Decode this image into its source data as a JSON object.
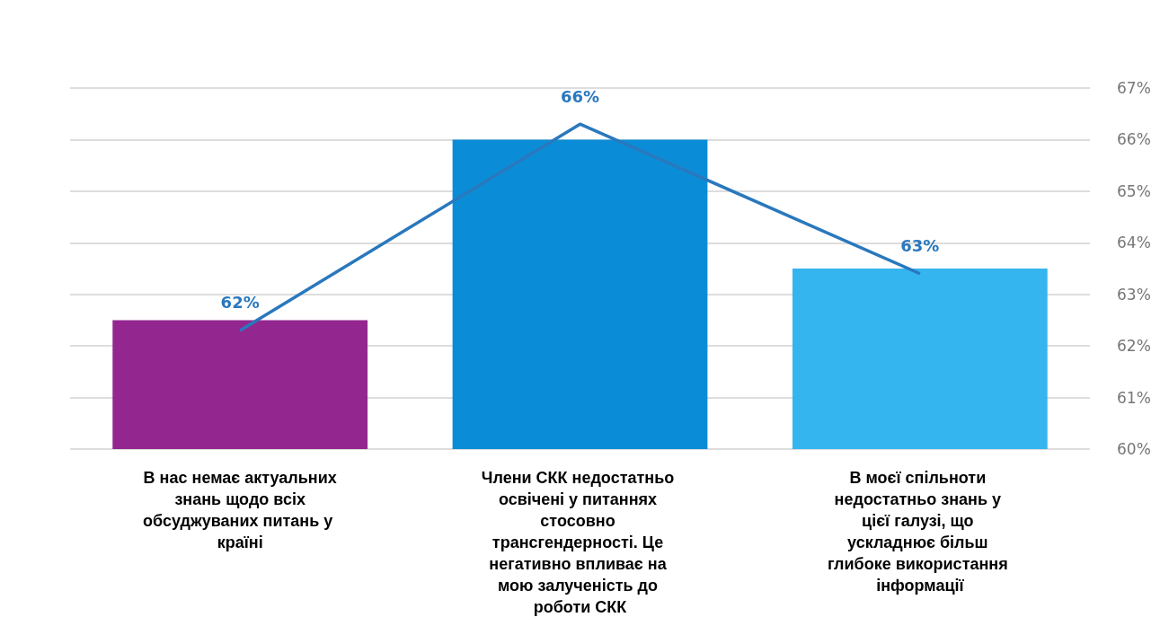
{
  "chart_data": {
    "type": "bar",
    "categories": [
      "В нас немає актуальних знань щодо всіх обсуджуваних питань у країні",
      "Члени СКК недостатньо освічені у питаннях стосовно трансгендерності. Це негативно впливає на мою залученість до роботи СКК",
      "В моєї спільноти недостатньо знань у цієї галузі, що ускладнює більш глибоке використання інформації"
    ],
    "series": [
      {
        "colors": [
          "#93278f",
          "#0a8dd6",
          "#35b5f0"
        ],
        "values": [
          62.5,
          66,
          63.5
        ]
      },
      {
        "type": "line",
        "color": "#2a78bd",
        "marker": "none",
        "values": [
          62.3,
          66.3,
          63.4
        ],
        "value_labels": [
          "62%",
          "66%",
          "63%"
        ]
      }
    ],
    "ylim": [
      60,
      67
    ],
    "yticks": [
      {
        "value": 60,
        "label": "60%"
      },
      {
        "value": 61,
        "label": "61%"
      },
      {
        "value": 62,
        "label": "62%"
      },
      {
        "value": 63,
        "label": "63%"
      },
      {
        "value": 64,
        "label": "64%"
      },
      {
        "value": 65,
        "label": "65%"
      },
      {
        "value": 66,
        "label": "66%"
      },
      {
        "value": 67,
        "label": "67%"
      }
    ],
    "grid": "y"
  }
}
